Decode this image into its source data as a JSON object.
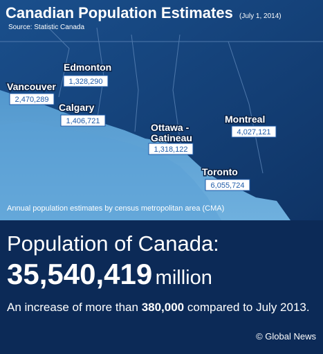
{
  "header": {
    "title": "Canadian Population Estimates",
    "date": "(July 1, 2014)",
    "source": "Source: Statistic Canada"
  },
  "cities": [
    {
      "lines": [
        "Vancouver"
      ],
      "value": "2,470,289"
    },
    {
      "lines": [
        "Edmonton"
      ],
      "value": "1,328,290"
    },
    {
      "lines": [
        "Calgary"
      ],
      "value": "1,406,721"
    },
    {
      "lines": [
        "Ottawa -",
        "Gatineau"
      ],
      "value": "1,318,122"
    },
    {
      "lines": [
        "Montreal"
      ],
      "value": "4,027,121"
    },
    {
      "lines": [
        "Toronto"
      ],
      "value": "6,055,724"
    }
  ],
  "footnote": "Annual population estimates by census metropolitan area (CMA)",
  "summary": {
    "heading": "Population of Canada:",
    "total": "35,540,419",
    "unit": "million",
    "increase": {
      "before": "An increase of more than",
      "amount": "380,000",
      "after": "compared to July 2013."
    },
    "credit": "© Global News"
  }
}
